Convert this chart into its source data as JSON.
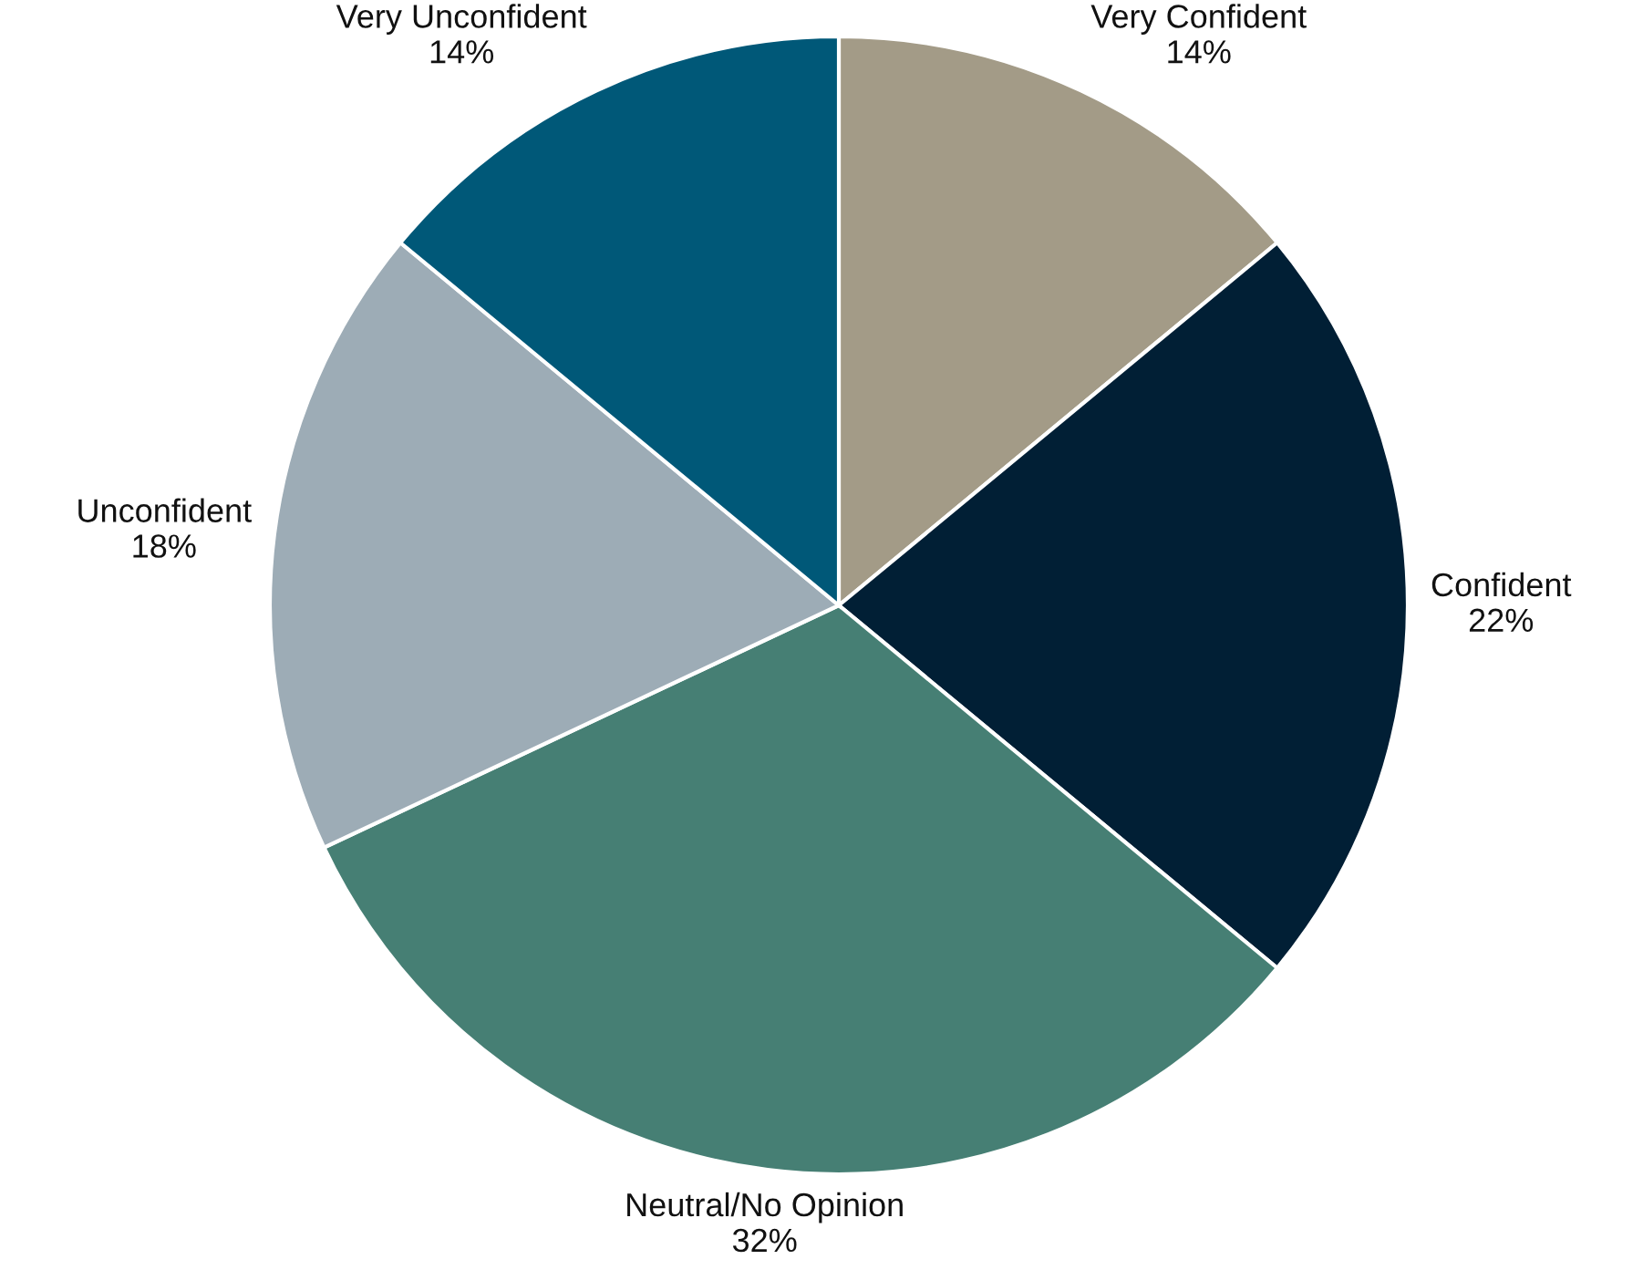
{
  "chart_data": {
    "type": "pie",
    "categories": [
      "Very Confident",
      "Confident",
      "Neutral/No Opinion",
      "Unconfident",
      "Very Unconfident"
    ],
    "values": [
      14,
      22,
      32,
      18,
      14
    ],
    "value_labels": [
      "14%",
      "22%",
      "32%",
      "18%",
      "14%"
    ],
    "colors": [
      "#a39b87",
      "#011f35",
      "#467f74",
      "#9dacb6",
      "#005878"
    ],
    "legend": false
  }
}
